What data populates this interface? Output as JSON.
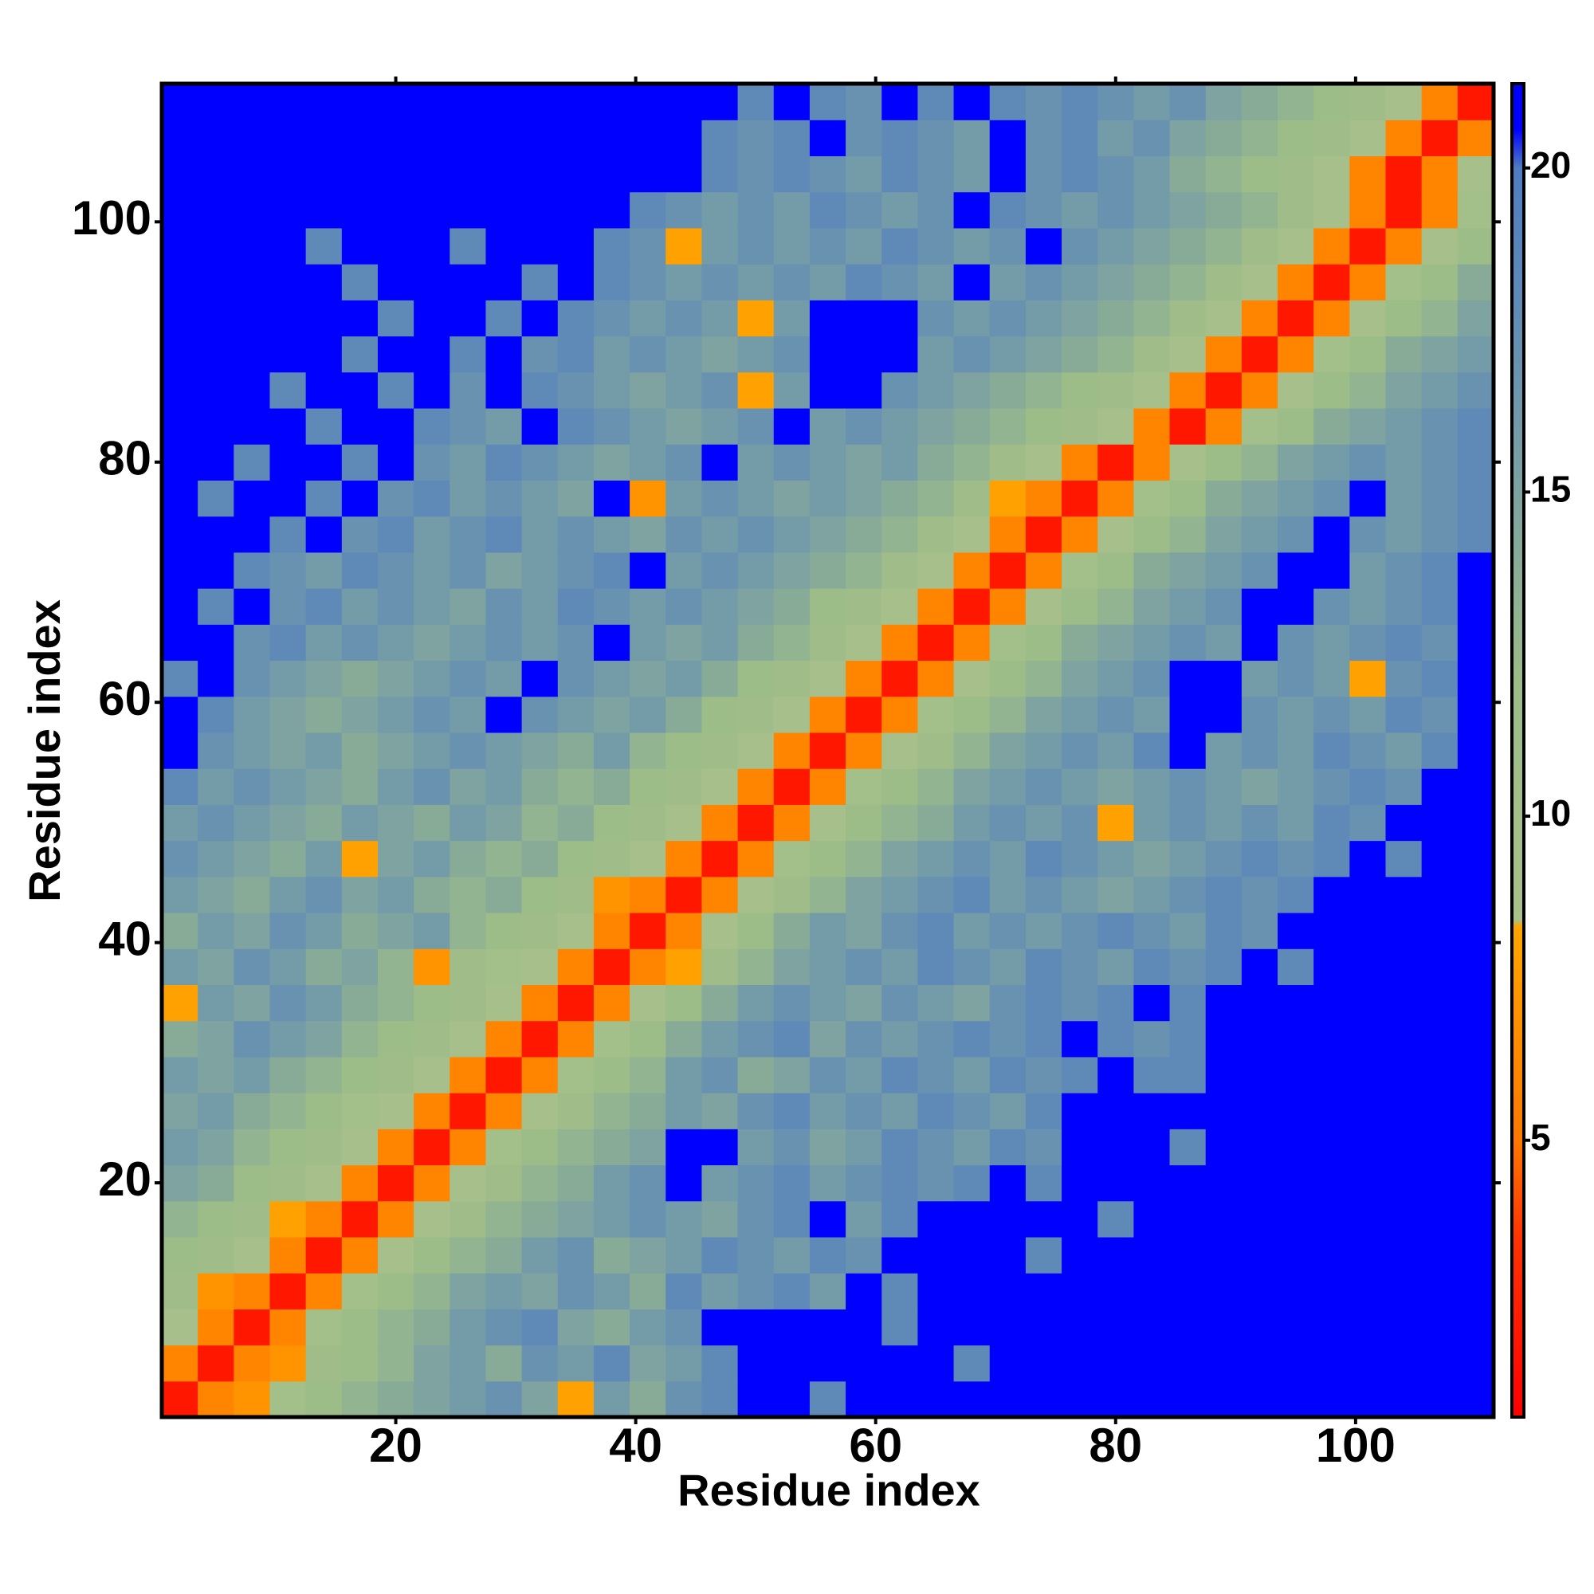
{
  "chart_data": {
    "type": "heatmap",
    "x_label": "Residue index",
    "y_label": "Residue index",
    "x": [
      2,
      5,
      8,
      11,
      14,
      17,
      20,
      23,
      26,
      29,
      32,
      35,
      38,
      41,
      44,
      47,
      50,
      53,
      56,
      59,
      62,
      65,
      68,
      71,
      74,
      77,
      80,
      83,
      86,
      89,
      92,
      95,
      98,
      101,
      104,
      107,
      110
    ],
    "y": [
      2,
      5,
      8,
      11,
      14,
      17,
      20,
      23,
      26,
      29,
      32,
      35,
      38,
      41,
      44,
      47,
      50,
      53,
      56,
      59,
      62,
      65,
      68,
      71,
      74,
      77,
      80,
      83,
      86,
      89,
      92,
      95,
      98,
      101,
      104,
      107,
      110
    ],
    "cell_size": 3,
    "xlim": [
      0.5,
      111.5
    ],
    "ylim": [
      0.5,
      111.5
    ],
    "xticks": [
      20,
      40,
      60,
      80,
      100
    ],
    "yticks": [
      20,
      40,
      60,
      80,
      100
    ],
    "colorbar": {
      "lim": [
        0.73,
        21.3
      ],
      "ticks": [
        5,
        10,
        15,
        20
      ]
    },
    "colorscale": [
      [
        0.73,
        "#ff0000"
      ],
      [
        3.5,
        "#ff3300"
      ],
      [
        5,
        "#ff7700"
      ],
      [
        8.3,
        "#ffa500"
      ],
      [
        8.4,
        "#a9c18b"
      ],
      [
        12,
        "#9cbc88"
      ],
      [
        18,
        "#5f8ab8"
      ],
      [
        20,
        "#4f7cc0"
      ],
      [
        20.6,
        "#0000ff"
      ],
      [
        21.3,
        "#0000ff"
      ]
    ],
    "z": [
      [
        2,
        6,
        7,
        10,
        12,
        13,
        14,
        15,
        16,
        17,
        15,
        8,
        16,
        14,
        17,
        18,
        21,
        21,
        18,
        21,
        21,
        21,
        21,
        21,
        21,
        21,
        21,
        21,
        21,
        21,
        21,
        21,
        21,
        21,
        21,
        21,
        21
      ],
      [
        6,
        2,
        6,
        7,
        11,
        12,
        13,
        15,
        16,
        14,
        17,
        16,
        18,
        15,
        16,
        18,
        21,
        21,
        21,
        21,
        21,
        21,
        18,
        21,
        21,
        21,
        21,
        21,
        21,
        21,
        21,
        21,
        21,
        21,
        21,
        21,
        21
      ],
      [
        9,
        6,
        2,
        6,
        10,
        12,
        13,
        14,
        16,
        17,
        18,
        15,
        14,
        16,
        17,
        21,
        21,
        21,
        21,
        21,
        18,
        21,
        21,
        21,
        21,
        21,
        21,
        21,
        21,
        21,
        21,
        21,
        21,
        21,
        21,
        21,
        21
      ],
      [
        11,
        7,
        6,
        2,
        6,
        10,
        12,
        13,
        15,
        16,
        15,
        17,
        16,
        14,
        18,
        16,
        17,
        18,
        16,
        21,
        18,
        21,
        21,
        21,
        21,
        21,
        21,
        21,
        21,
        21,
        21,
        21,
        21,
        21,
        21,
        21,
        21
      ],
      [
        12,
        11,
        9,
        6,
        2,
        6,
        9,
        12,
        13,
        14,
        16,
        17,
        14,
        15,
        16,
        18,
        17,
        16,
        18,
        17,
        21,
        21,
        21,
        21,
        18,
        21,
        21,
        21,
        21,
        21,
        21,
        21,
        21,
        21,
        21,
        21,
        21
      ],
      [
        13,
        12,
        11,
        8,
        6,
        2,
        6,
        9,
        11,
        13,
        14,
        15,
        16,
        17,
        16,
        15,
        17,
        18,
        21,
        16,
        18,
        21,
        21,
        21,
        21,
        21,
        18,
        21,
        21,
        21,
        21,
        21,
        21,
        21,
        21,
        21,
        21
      ],
      [
        15,
        14,
        12,
        11,
        9,
        6,
        2,
        6,
        9,
        11,
        13,
        14,
        16,
        17,
        21,
        16,
        17,
        18,
        16,
        17,
        18,
        17,
        18,
        21,
        18,
        21,
        21,
        21,
        21,
        21,
        21,
        21,
        21,
        21,
        21,
        21,
        21
      ],
      [
        16,
        15,
        13,
        12,
        11,
        9,
        6,
        2,
        6,
        10,
        12,
        13,
        14,
        15,
        21,
        21,
        16,
        17,
        15,
        16,
        18,
        17,
        16,
        18,
        17,
        21,
        21,
        21,
        18,
        21,
        21,
        21,
        21,
        21,
        21,
        21,
        21
      ],
      [
        15,
        16,
        14,
        13,
        12,
        10,
        9,
        6,
        2,
        6,
        9,
        11,
        13,
        14,
        16,
        15,
        17,
        18,
        16,
        17,
        16,
        18,
        17,
        16,
        18,
        21,
        21,
        21,
        21,
        21,
        21,
        21,
        21,
        21,
        21,
        21,
        21
      ],
      [
        16,
        15,
        16,
        14,
        13,
        12,
        11,
        9,
        6,
        2,
        6,
        10,
        12,
        13,
        16,
        17,
        14,
        15,
        17,
        16,
        18,
        17,
        16,
        18,
        17,
        18,
        21,
        18,
        18,
        21,
        21,
        21,
        21,
        21,
        21,
        21,
        21
      ],
      [
        14,
        15,
        17,
        16,
        15,
        13,
        12,
        11,
        9,
        6,
        2,
        6,
        10,
        12,
        14,
        16,
        17,
        18,
        15,
        17,
        16,
        17,
        18,
        17,
        18,
        21,
        18,
        17,
        18,
        21,
        21,
        21,
        21,
        21,
        21,
        21,
        21
      ],
      [
        8,
        16,
        15,
        17,
        16,
        14,
        13,
        12,
        11,
        9,
        6,
        2,
        6,
        9,
        12,
        14,
        16,
        17,
        16,
        15,
        17,
        16,
        15,
        17,
        18,
        17,
        18,
        21,
        18,
        21,
        21,
        21,
        21,
        21,
        21,
        21,
        21
      ],
      [
        16,
        15,
        17,
        16,
        14,
        15,
        13,
        7,
        11,
        10,
        9,
        6,
        2,
        6,
        8,
        11,
        13,
        15,
        16,
        17,
        16,
        18,
        17,
        16,
        18,
        17,
        16,
        18,
        17,
        18,
        21,
        18,
        21,
        21,
        21,
        21,
        21
      ],
      [
        14,
        16,
        15,
        17,
        16,
        14,
        15,
        16,
        13,
        12,
        11,
        9,
        6,
        2,
        6,
        9,
        12,
        14,
        16,
        15,
        17,
        18,
        16,
        17,
        16,
        17,
        18,
        17,
        16,
        18,
        17,
        21,
        21,
        21,
        21,
        21,
        21
      ],
      [
        16,
        15,
        14,
        16,
        17,
        15,
        16,
        14,
        13,
        14,
        12,
        11,
        7,
        6,
        2,
        6,
        9,
        11,
        13,
        15,
        16,
        17,
        18,
        16,
        17,
        16,
        15,
        16,
        17,
        18,
        17,
        18,
        21,
        21,
        21,
        21,
        21
      ],
      [
        17,
        16,
        15,
        14,
        16,
        8,
        15,
        16,
        14,
        13,
        14,
        12,
        11,
        9,
        6,
        2,
        6,
        10,
        12,
        13,
        15,
        16,
        17,
        16,
        18,
        17,
        16,
        15,
        16,
        17,
        18,
        17,
        18,
        21,
        18,
        21,
        21
      ],
      [
        16,
        17,
        16,
        15,
        14,
        16,
        15,
        14,
        16,
        15,
        13,
        14,
        12,
        11,
        9,
        6,
        2,
        6,
        9,
        12,
        13,
        14,
        16,
        17,
        16,
        17,
        8,
        16,
        17,
        16,
        17,
        16,
        18,
        17,
        21,
        21,
        21
      ],
      [
        18,
        16,
        17,
        16,
        15,
        14,
        16,
        17,
        15,
        16,
        14,
        13,
        14,
        12,
        11,
        9,
        6,
        2,
        6,
        10,
        12,
        13,
        15,
        16,
        17,
        16,
        15,
        16,
        17,
        16,
        15,
        16,
        17,
        18,
        17,
        21,
        21
      ],
      [
        21,
        17,
        16,
        15,
        16,
        14,
        15,
        16,
        17,
        16,
        15,
        14,
        16,
        13,
        12,
        11,
        9,
        6,
        2,
        6,
        9,
        11,
        13,
        15,
        16,
        17,
        16,
        18,
        21,
        16,
        17,
        16,
        18,
        17,
        16,
        18,
        21
      ],
      [
        21,
        18,
        16,
        15,
        14,
        15,
        16,
        17,
        16,
        21,
        17,
        16,
        15,
        16,
        14,
        12,
        11,
        9,
        6,
        2,
        6,
        10,
        12,
        13,
        15,
        16,
        17,
        16,
        21,
        21,
        17,
        16,
        17,
        16,
        18,
        17,
        21
      ],
      [
        18,
        21,
        17,
        16,
        15,
        14,
        15,
        16,
        17,
        16,
        21,
        17,
        16,
        15,
        16,
        14,
        12,
        11,
        9,
        6,
        2,
        6,
        9,
        12,
        13,
        15,
        16,
        17,
        21,
        21,
        16,
        17,
        16,
        8,
        17,
        18,
        21
      ],
      [
        21,
        21,
        17,
        18,
        16,
        17,
        16,
        15,
        16,
        17,
        16,
        17,
        21,
        16,
        15,
        16,
        14,
        13,
        11,
        9,
        6,
        2,
        6,
        10,
        12,
        14,
        15,
        16,
        17,
        16,
        21,
        17,
        16,
        17,
        18,
        17,
        21
      ],
      [
        21,
        18,
        21,
        17,
        18,
        16,
        17,
        16,
        15,
        17,
        16,
        18,
        17,
        16,
        17,
        16,
        15,
        14,
        12,
        11,
        9,
        6,
        2,
        6,
        9,
        12,
        13,
        15,
        16,
        17,
        21,
        21,
        17,
        16,
        17,
        18,
        21
      ],
      [
        21,
        21,
        18,
        17,
        16,
        18,
        17,
        16,
        17,
        15,
        16,
        17,
        18,
        21,
        16,
        17,
        16,
        15,
        14,
        13,
        11,
        9,
        6,
        2,
        6,
        10,
        12,
        14,
        15,
        16,
        17,
        21,
        21,
        16,
        17,
        18,
        21
      ],
      [
        21,
        21,
        21,
        18,
        21,
        17,
        18,
        16,
        17,
        18,
        16,
        17,
        16,
        15,
        17,
        16,
        17,
        16,
        15,
        14,
        13,
        11,
        9,
        6,
        2,
        6,
        9,
        12,
        13,
        15,
        16,
        17,
        21,
        17,
        16,
        17,
        18
      ],
      [
        21,
        18,
        21,
        21,
        18,
        21,
        17,
        18,
        16,
        17,
        16,
        15,
        21,
        7,
        16,
        17,
        16,
        15,
        16,
        15,
        14,
        13,
        11,
        8,
        6,
        2,
        6,
        10,
        12,
        14,
        15,
        16,
        17,
        21,
        16,
        17,
        18
      ],
      [
        21,
        21,
        18,
        21,
        21,
        18,
        21,
        17,
        16,
        18,
        17,
        16,
        15,
        16,
        17,
        21,
        16,
        17,
        16,
        15,
        16,
        14,
        13,
        11,
        9,
        6,
        2,
        6,
        9,
        12,
        13,
        15,
        16,
        17,
        16,
        17,
        18
      ],
      [
        21,
        21,
        21,
        21,
        18,
        21,
        21,
        18,
        17,
        16,
        21,
        18,
        17,
        16,
        15,
        16,
        17,
        21,
        16,
        17,
        16,
        15,
        14,
        13,
        12,
        11,
        9,
        6,
        2,
        6,
        10,
        12,
        14,
        15,
        16,
        17,
        18
      ],
      [
        21,
        21,
        21,
        18,
        21,
        21,
        18,
        21,
        17,
        21,
        18,
        17,
        16,
        15,
        16,
        17,
        8,
        16,
        21,
        21,
        17,
        16,
        15,
        14,
        13,
        12,
        11,
        9,
        6,
        2,
        6,
        9,
        12,
        13,
        15,
        16,
        17
      ],
      [
        21,
        21,
        21,
        21,
        21,
        18,
        21,
        21,
        18,
        21,
        17,
        18,
        16,
        17,
        16,
        15,
        16,
        17,
        21,
        21,
        21,
        16,
        17,
        16,
        15,
        14,
        13,
        11,
        9,
        6,
        2,
        6,
        10,
        12,
        14,
        15,
        16
      ],
      [
        21,
        21,
        21,
        21,
        21,
        21,
        18,
        21,
        21,
        18,
        21,
        18,
        17,
        16,
        17,
        16,
        8,
        16,
        21,
        21,
        21,
        17,
        16,
        17,
        16,
        15,
        14,
        13,
        11,
        9,
        6,
        2,
        6,
        9,
        12,
        13,
        15
      ],
      [
        21,
        21,
        21,
        21,
        21,
        18,
        21,
        21,
        21,
        21,
        18,
        21,
        18,
        17,
        16,
        17,
        16,
        17,
        16,
        18,
        17,
        16,
        21,
        16,
        17,
        16,
        15,
        14,
        13,
        11,
        9,
        6,
        2,
        6,
        10,
        12,
        14
      ],
      [
        21,
        21,
        21,
        21,
        18,
        21,
        21,
        21,
        18,
        21,
        21,
        21,
        18,
        17,
        8,
        16,
        17,
        16,
        17,
        16,
        18,
        17,
        16,
        17,
        21,
        17,
        16,
        15,
        14,
        13,
        11,
        9,
        6,
        2,
        6,
        9,
        12
      ],
      [
        21,
        21,
        21,
        21,
        21,
        21,
        21,
        21,
        21,
        21,
        21,
        21,
        21,
        18,
        17,
        16,
        17,
        16,
        18,
        17,
        16,
        17,
        21,
        18,
        17,
        16,
        17,
        16,
        15,
        14,
        13,
        11,
        9,
        6,
        2,
        6,
        10
      ],
      [
        21,
        21,
        21,
        21,
        21,
        21,
        21,
        21,
        21,
        21,
        21,
        21,
        21,
        21,
        21,
        18,
        17,
        18,
        17,
        16,
        18,
        17,
        16,
        21,
        17,
        18,
        17,
        16,
        14,
        13,
        12,
        11,
        9,
        6,
        2,
        6,
        9
      ],
      [
        21,
        21,
        21,
        21,
        21,
        21,
        21,
        21,
        21,
        21,
        21,
        21,
        21,
        21,
        21,
        18,
        17,
        18,
        21,
        17,
        18,
        17,
        16,
        21,
        17,
        18,
        16,
        17,
        15,
        14,
        13,
        12,
        11,
        9,
        6,
        2,
        6
      ],
      [
        21,
        21,
        21,
        21,
        21,
        21,
        21,
        21,
        21,
        21,
        21,
        21,
        21,
        21,
        21,
        21,
        18,
        21,
        18,
        17,
        21,
        18,
        21,
        18,
        17,
        18,
        17,
        16,
        17,
        15,
        14,
        13,
        12,
        11,
        9,
        6,
        2
      ]
    ]
  }
}
